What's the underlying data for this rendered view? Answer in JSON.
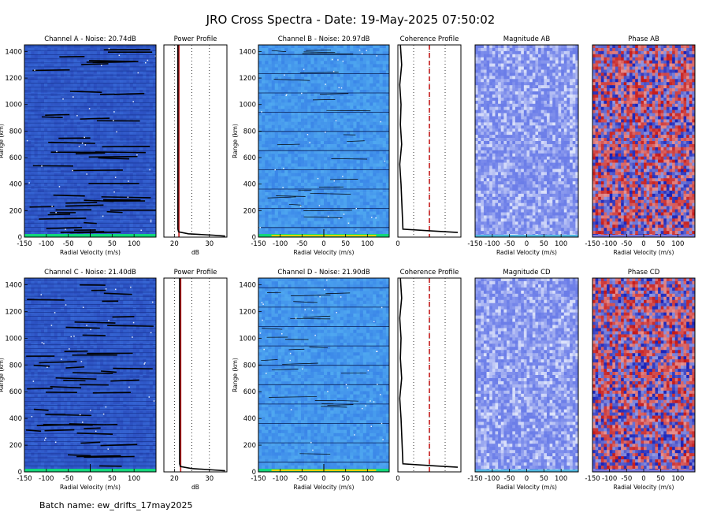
{
  "figure": {
    "title": "JRO Cross Spectra - Date: 19-May-2025 07:50:02",
    "batch": "Batch name: ew_drifts_17may2025"
  },
  "colors": {
    "spectra_dark": "#2b4fc0",
    "spectra_light": "#3a86e8",
    "magnitude": "#6b7de8",
    "phase_red": "#c41818",
    "phase_blue": "#1822b8",
    "profile_line": "#c41818",
    "noise_band_a": "#13d67a",
    "noise_band_b": "#f0d000"
  },
  "chart_data": [
    {
      "type": "heatmap",
      "title": "Channel A - Noise: 20.74dB",
      "xlabel": "Radial Velocity (m/s)",
      "ylabel": "Range (km)",
      "xlim": [
        -150,
        150
      ],
      "ylim": [
        0,
        1450
      ],
      "x_ticks": [
        "-150",
        "-100",
        "-50",
        "0",
        "50",
        "100"
      ],
      "y_ticks": [
        "0",
        "200",
        "400",
        "600",
        "800",
        "1000",
        "1200",
        "1400"
      ]
    },
    {
      "type": "line",
      "title": "Power Profile",
      "xlabel": "dB",
      "xlim": [
        17,
        35
      ],
      "ylim": [
        0,
        1450
      ],
      "x_ticks": [
        "20",
        "30"
      ],
      "x": [
        21.0,
        21.0,
        21.0,
        21.0,
        21.0,
        21.0,
        21.2,
        24.0,
        31.0,
        34.5
      ],
      "y": [
        1450,
        1200,
        900,
        600,
        300,
        60,
        40,
        25,
        15,
        8
      ]
    },
    {
      "type": "heatmap",
      "title": "Channel B - Noise: 20.97dB",
      "xlabel": "Radial Velocity (m/s)",
      "ylabel": "Range (km)",
      "xlim": [
        -150,
        150
      ],
      "ylim": [
        0,
        1450
      ],
      "x_ticks": [
        "-150",
        "-100",
        "-50",
        "0",
        "50",
        "100"
      ],
      "y_ticks": [
        "0",
        "200",
        "400",
        "600",
        "800",
        "1000",
        "1200",
        "1400"
      ]
    },
    {
      "type": "line",
      "title": "Coherence Profile",
      "xlim": [
        0,
        1
      ],
      "ylim": [
        0,
        1450
      ],
      "x_ticks": [
        "0"
      ],
      "x": [
        0.04,
        0.06,
        0.03,
        0.05,
        0.04,
        0.06,
        0.03,
        0.05,
        0.08,
        0.6,
        0.95
      ],
      "y": [
        1450,
        1300,
        1150,
        1000,
        850,
        700,
        550,
        400,
        60,
        45,
        35
      ]
    },
    {
      "type": "heatmap",
      "title": "Magnitude AB",
      "xlabel": "Radial Velocity (m/s)",
      "xlim": [
        -150,
        150
      ],
      "x_ticks": [
        "-150",
        "-100",
        "-50",
        "0",
        "50",
        "100"
      ]
    },
    {
      "type": "heatmap",
      "title": "Phase AB",
      "xlabel": "Radial Velocity (m/s)",
      "xlim": [
        -150,
        150
      ],
      "x_ticks": [
        "-150",
        "-100",
        "-50",
        "0",
        "50",
        "100"
      ]
    },
    {
      "type": "heatmap",
      "title": "Channel C - Noise: 21.40dB",
      "xlabel": "Radial Velocity (m/s)",
      "ylabel": "Range (km)",
      "xlim": [
        -150,
        150
      ],
      "ylim": [
        0,
        1450
      ],
      "x_ticks": [
        "-150",
        "-100",
        "-50",
        "0",
        "50",
        "100"
      ],
      "y_ticks": [
        "0",
        "200",
        "400",
        "600",
        "800",
        "1000",
        "1200",
        "1400"
      ]
    },
    {
      "type": "line",
      "title": "Power Profile",
      "xlabel": "dB",
      "xlim": [
        17,
        35
      ],
      "ylim": [
        0,
        1450
      ],
      "x_ticks": [
        "20",
        "30"
      ],
      "x": [
        21.5,
        21.5,
        21.5,
        21.5,
        21.5,
        21.5,
        21.7,
        25.0,
        31.0,
        34.5
      ],
      "y": [
        1450,
        1200,
        900,
        600,
        300,
        60,
        40,
        25,
        15,
        8
      ]
    },
    {
      "type": "heatmap",
      "title": "Channel D - Noise: 21.90dB",
      "xlabel": "Radial Velocity (m/s)",
      "ylabel": "Range (km)",
      "xlim": [
        -150,
        150
      ],
      "ylim": [
        0,
        1450
      ],
      "x_ticks": [
        "-150",
        "-100",
        "-50",
        "0",
        "50",
        "100"
      ],
      "y_ticks": [
        "0",
        "200",
        "400",
        "600",
        "800",
        "1000",
        "1200",
        "1400"
      ]
    },
    {
      "type": "line",
      "title": "Coherence Profile",
      "xlim": [
        0,
        1
      ],
      "ylim": [
        0,
        1450
      ],
      "x_ticks": [
        "0"
      ],
      "x": [
        0.04,
        0.06,
        0.03,
        0.05,
        0.04,
        0.06,
        0.03,
        0.05,
        0.08,
        0.6,
        0.95
      ],
      "y": [
        1450,
        1300,
        1150,
        1000,
        850,
        700,
        550,
        400,
        60,
        45,
        35
      ]
    },
    {
      "type": "heatmap",
      "title": "Magnitude CD",
      "xlabel": "Radial Velocity (m/s)",
      "xlim": [
        -150,
        150
      ],
      "x_ticks": [
        "-150",
        "-100",
        "-50",
        "0",
        "50",
        "100"
      ]
    },
    {
      "type": "heatmap",
      "title": "Phase CD",
      "xlabel": "Radial Velocity (m/s)",
      "xlim": [
        -150,
        150
      ],
      "x_ticks": [
        "-150",
        "-100",
        "-50",
        "0",
        "50",
        "100"
      ]
    }
  ]
}
